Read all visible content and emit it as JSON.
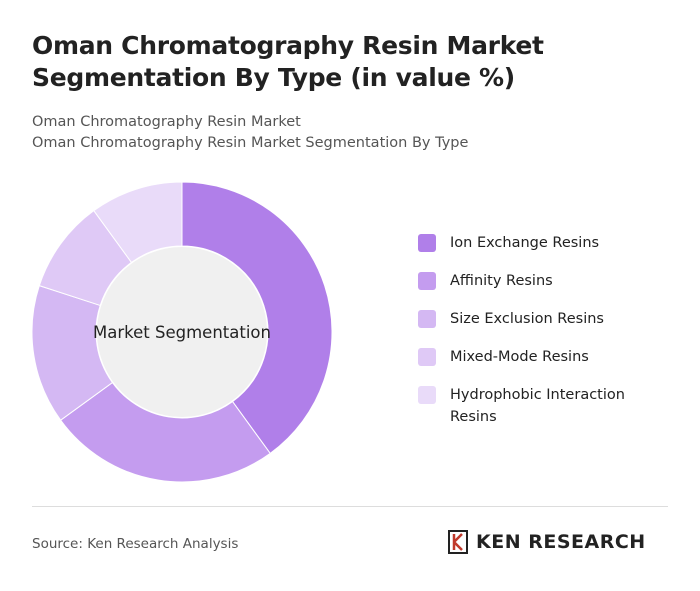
{
  "chart_data": {
    "type": "donut",
    "title": "Oman Chromatography Resin Market Segmentation By Type (in value %)",
    "subtitle": [
      "Oman Chromatography Resin Market",
      "Oman Chromatography Resin Market Segmentation By Type"
    ],
    "center_label": "Market Segmentation",
    "categories": [
      "Ion Exchange Resins",
      "Affinity Resins",
      "Size Exclusion Resins",
      "Mixed-Mode Resins",
      "Hydrophobic Interaction Resins"
    ],
    "values": [
      40,
      25,
      15,
      10,
      10
    ],
    "colors": [
      "#b07fe9",
      "#c49cef",
      "#d4b8f3",
      "#dfc9f6",
      "#e9dbf9"
    ],
    "source": "Source: Ken Research Analysis",
    "logo": "KEN RESEARCH"
  }
}
